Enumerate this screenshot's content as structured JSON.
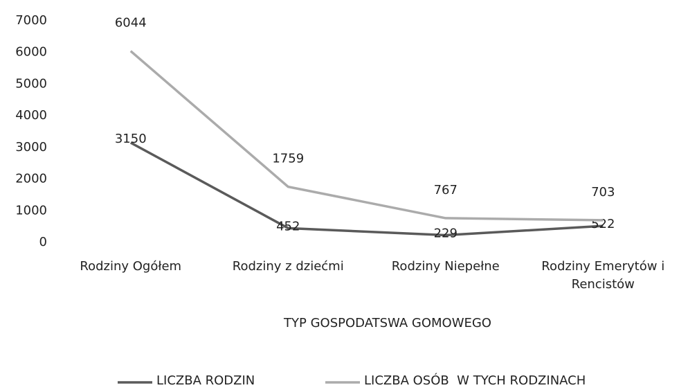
{
  "chart_data": {
    "type": "line",
    "x_label": "TYP GOSPODATSWA GOMOWEGO",
    "categories": [
      "Rodziny Ogółem",
      "Rodziny z dziećmi",
      "Rodziny Niepełne",
      "Rodziny Emerytów i Rencistów"
    ],
    "series": [
      {
        "name": "LICZBA RODZIN",
        "color": "#5a5a5a",
        "values": [
          3150,
          452,
          229,
          522
        ]
      },
      {
        "name": "LICZBA OSÓB  W TYCH RODZINACH",
        "color": "#ababab",
        "values": [
          6044,
          1759,
          767,
          703
        ]
      }
    ],
    "ylim": [
      0,
      7000
    ],
    "yticks": [
      0,
      1000,
      2000,
      3000,
      4000,
      5000,
      6000,
      7000
    ],
    "grid": false
  }
}
